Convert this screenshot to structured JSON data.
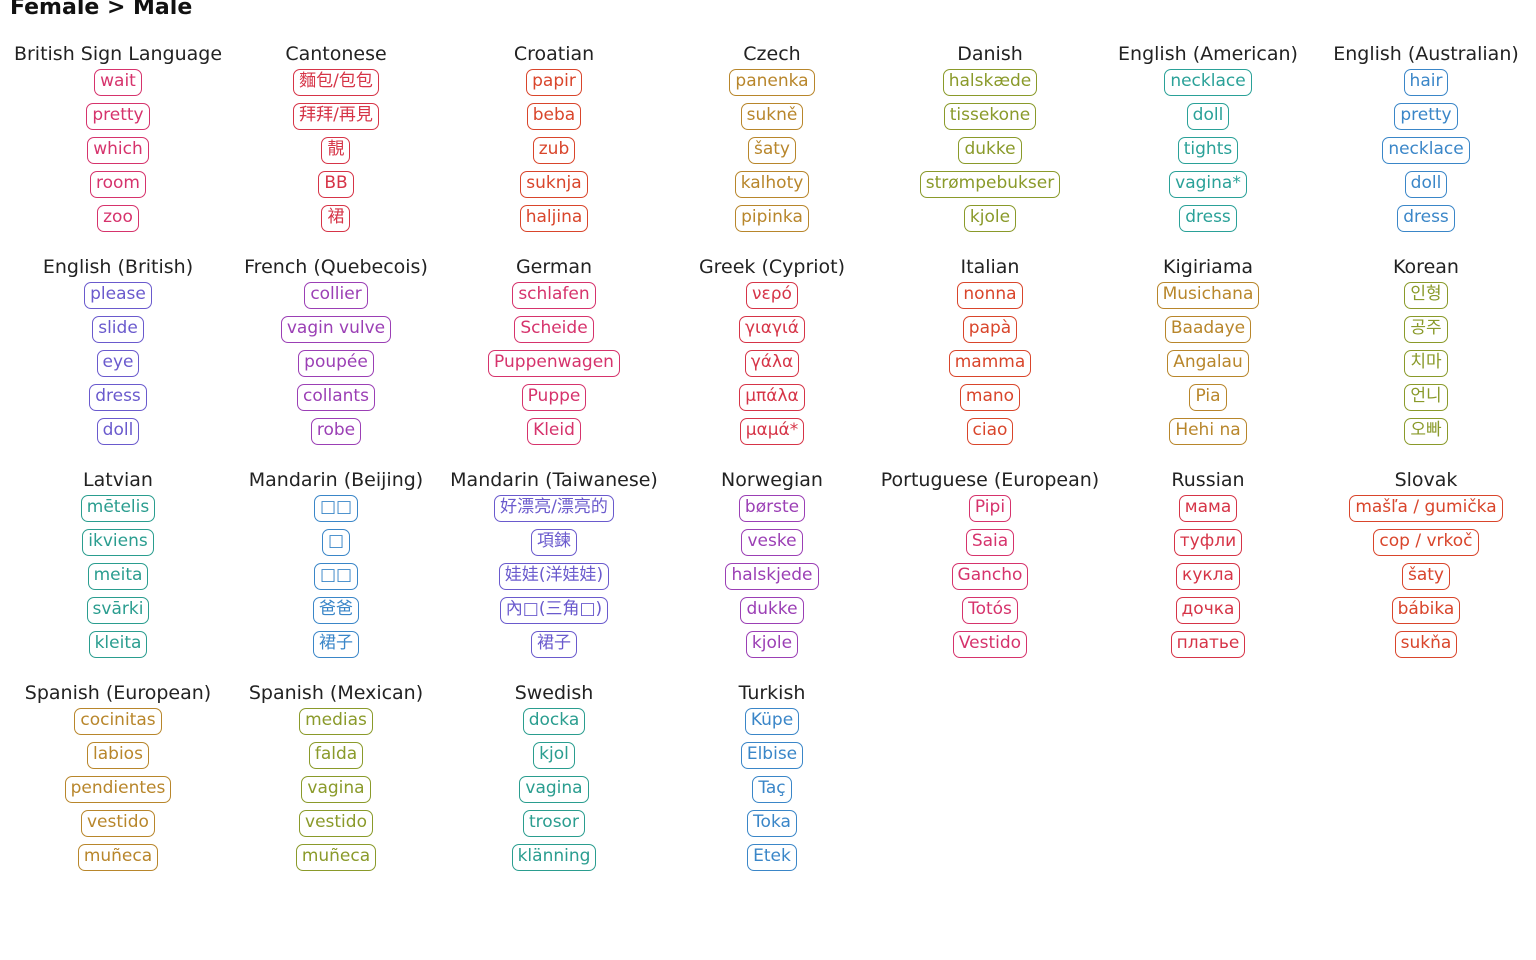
{
  "title": "Female > Male",
  "languages": [
    {
      "name": "British Sign Language",
      "color": "#d6336c",
      "words": [
        "wait",
        "pretty",
        "which",
        "room",
        "zoo"
      ]
    },
    {
      "name": "Cantonese",
      "color": "#d63447",
      "words": [
        "麵包/包包",
        "拜拜/再見",
        "靚",
        "BB",
        "裙"
      ]
    },
    {
      "name": "Croatian",
      "color": "#d9452b",
      "words": [
        "papir",
        "beba",
        "zub",
        "suknja",
        "haljina"
      ]
    },
    {
      "name": "Czech",
      "color": "#b8862b",
      "words": [
        "panenka",
        "sukně",
        "šaty",
        "kalhoty",
        "pipinka"
      ]
    },
    {
      "name": "Danish",
      "color": "#8a9a2a",
      "words": [
        "halskæde",
        "tissekone",
        "dukke",
        "strømpebukser",
        "kjole"
      ]
    },
    {
      "name": "English (American)",
      "color": "#2aa198",
      "words": [
        "necklace",
        "doll",
        "tights",
        "vagina*",
        "dress"
      ]
    },
    {
      "name": "English (Australian)",
      "color": "#3a86c8",
      "words": [
        "hair",
        "pretty",
        "necklace",
        "doll",
        "dress"
      ]
    },
    {
      "name": "English (British)",
      "color": "#6a5acd",
      "words": [
        "please",
        "slide",
        "eye",
        "dress",
        "doll"
      ]
    },
    {
      "name": "French (Quebecois)",
      "color": "#9b3fb5",
      "words": [
        "collier",
        "vagin vulve",
        "poupée",
        "collants",
        "robe"
      ]
    },
    {
      "name": "German",
      "color": "#d6336c",
      "words": [
        "schlafen",
        "Scheide",
        "Puppenwagen",
        "Puppe",
        "Kleid"
      ]
    },
    {
      "name": "Greek (Cypriot)",
      "color": "#d63447",
      "words": [
        "νερό",
        "γιαγιά",
        "γάλα",
        "μπάλα",
        "μαμά*"
      ]
    },
    {
      "name": "Italian",
      "color": "#d9452b",
      "words": [
        "nonna",
        "papà",
        "mamma",
        "mano",
        "ciao"
      ]
    },
    {
      "name": "Kigiriama",
      "color": "#b8862b",
      "words": [
        "Musichana",
        "Baadaye",
        "Angalau",
        "Pia",
        "Hehi na"
      ]
    },
    {
      "name": "Korean",
      "color": "#8a9a2a",
      "words": [
        "인형",
        "공주",
        "치마",
        "언니",
        "오빠"
      ]
    },
    {
      "name": "Latvian",
      "color": "#2a9d8f",
      "words": [
        "mētelis",
        "ikviens",
        "meita",
        "svārki",
        "kleita"
      ]
    },
    {
      "name": "Mandarin (Beijing)",
      "color": "#3a86c8",
      "words": [
        "□□",
        "□",
        "□□",
        "爸爸",
        "裙子"
      ]
    },
    {
      "name": "Mandarin (Taiwanese)",
      "color": "#6a5acd",
      "words": [
        "好漂亮/漂亮的",
        "項鍊",
        "娃娃(洋娃娃)",
        "內□(三角□)",
        "裙子"
      ]
    },
    {
      "name": "Norwegian",
      "color": "#9b3fb5",
      "words": [
        "børste",
        "veske",
        "halskjede",
        "dukke",
        "kjole"
      ]
    },
    {
      "name": "Portuguese (European)",
      "color": "#d6336c",
      "words": [
        "Pipi",
        "Saia",
        "Gancho",
        "Totós",
        "Vestido"
      ]
    },
    {
      "name": "Russian",
      "color": "#d63447",
      "words": [
        "мама",
        "туфли",
        "кукла",
        "дочка",
        "платье"
      ]
    },
    {
      "name": "Slovak",
      "color": "#d9452b",
      "words": [
        "mašľa / gumička",
        "cop / vrkoč",
        "šaty",
        "bábika",
        "sukňa"
      ]
    },
    {
      "name": "Spanish (European)",
      "color": "#b8862b",
      "words": [
        "cocinitas",
        "labios",
        "pendientes",
        "vestido",
        "muñeca"
      ]
    },
    {
      "name": "Spanish (Mexican)",
      "color": "#8a9a2a",
      "words": [
        "medias",
        "falda",
        "vagina",
        "vestido",
        "muñeca"
      ]
    },
    {
      "name": "Swedish",
      "color": "#2a9d8f",
      "words": [
        "docka",
        "kjol",
        "vagina",
        "trosor",
        "klänning"
      ]
    },
    {
      "name": "Turkish",
      "color": "#3a86c8",
      "words": [
        "Küpe",
        "Elbise",
        "Taç",
        "Toka",
        "Etek"
      ]
    }
  ]
}
